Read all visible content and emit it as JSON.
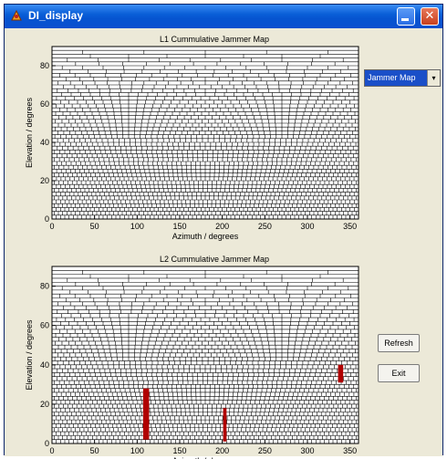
{
  "window": {
    "title": "DI_display",
    "close_glyph": "✕",
    "accent_color": "#0a5fd8",
    "icons": [
      "app-icon",
      "minimize-icon",
      "close-icon"
    ]
  },
  "controls": {
    "map_select_value": "Jammer Map",
    "map_select_arrow": "▾",
    "refresh_label": "Refresh",
    "exit_label": "Exit"
  },
  "colors": {
    "grid": "#000000",
    "jammer": "#b00000",
    "panel": "#ece9d8",
    "axes_bg": "#ffffff"
  },
  "chart_data": [
    {
      "type": "heatmap",
      "title": "L1 Cummulative Jammer Map",
      "xlabel": "Azimuth / degrees",
      "ylabel": "Elevation / degrees",
      "xlim": [
        0,
        360
      ],
      "ylim": [
        0,
        90
      ],
      "xticks": [
        "0",
        "50",
        "100",
        "150",
        "200",
        "250",
        "300",
        "350"
      ],
      "yticks": [
        "0",
        "20",
        "40",
        "60",
        "80"
      ],
      "grid": "sky bins (azimuth × elevation)",
      "detections": []
    },
    {
      "type": "heatmap",
      "title": "L2 Cummulative Jammer Map",
      "xlabel": "Azimuth / degrees",
      "ylabel": "Elevation / degrees",
      "xlim": [
        0,
        360
      ],
      "ylim": [
        0,
        90
      ],
      "xticks": [
        "0",
        "50",
        "100",
        "150",
        "200",
        "250",
        "300",
        "350"
      ],
      "yticks": [
        "0",
        "20",
        "40",
        "60",
        "80"
      ],
      "grid": "sky bins (azimuth × elevation)",
      "detections": [
        {
          "azimuth": [
            107,
            114
          ],
          "elevation": [
            2,
            28
          ]
        },
        {
          "azimuth": [
            201,
            205
          ],
          "elevation": [
            1,
            18
          ]
        },
        {
          "azimuth": [
            336,
            342
          ],
          "elevation": [
            31,
            40
          ]
        }
      ]
    }
  ]
}
